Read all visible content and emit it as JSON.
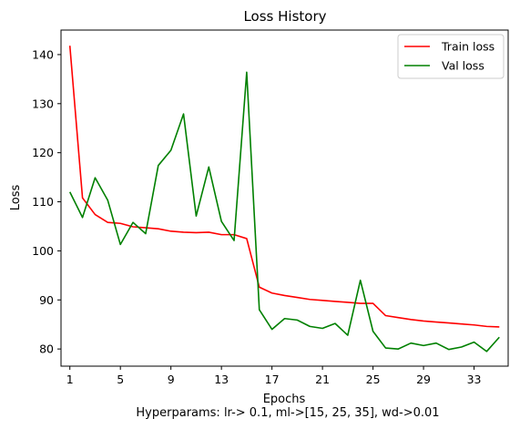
{
  "chart_data": {
    "type": "line",
    "title": "Loss History",
    "xlabel": "Epochs",
    "ylabel": "Loss",
    "caption": "Hyperparams: lr-> 0.1, ml->[15, 25, 35], wd->0.01",
    "xlim": [
      0.3,
      35.7
    ],
    "ylim": [
      76.5,
      145
    ],
    "xticks": [
      1,
      5,
      9,
      13,
      17,
      21,
      25,
      29,
      33
    ],
    "yticks": [
      80,
      90,
      100,
      110,
      120,
      130,
      140
    ],
    "grid": false,
    "legend_position": "top-right",
    "x": [
      1,
      2,
      3,
      4,
      5,
      6,
      7,
      8,
      9,
      10,
      11,
      12,
      13,
      14,
      15,
      16,
      17,
      18,
      19,
      20,
      21,
      22,
      23,
      24,
      25,
      26,
      27,
      28,
      29,
      30,
      31,
      32,
      33,
      34,
      35
    ],
    "series": [
      {
        "name": "Train loss",
        "color": "#ff0000",
        "values": [
          141.8,
          110.8,
          107.4,
          105.8,
          105.6,
          104.9,
          104.7,
          104.5,
          104.0,
          103.8,
          103.7,
          103.8,
          103.3,
          103.3,
          102.5,
          92.6,
          91.4,
          90.9,
          90.5,
          90.1,
          89.9,
          89.7,
          89.5,
          89.3,
          89.3,
          86.8,
          86.4,
          86.0,
          85.7,
          85.5,
          85.3,
          85.1,
          84.9,
          84.6,
          84.5
        ]
      },
      {
        "name": "Val loss",
        "color": "#008000",
        "values": [
          112.0,
          106.8,
          114.9,
          110.3,
          101.3,
          105.8,
          103.5,
          117.4,
          120.5,
          127.9,
          107.1,
          117.1,
          106.0,
          102.1,
          136.4,
          88.0,
          84.0,
          86.2,
          85.9,
          84.6,
          84.2,
          85.2,
          82.8,
          94.0,
          83.6,
          80.2,
          80.0,
          81.2,
          80.7,
          81.2,
          79.9,
          80.4,
          81.4,
          79.5,
          82.4
        ]
      }
    ]
  }
}
